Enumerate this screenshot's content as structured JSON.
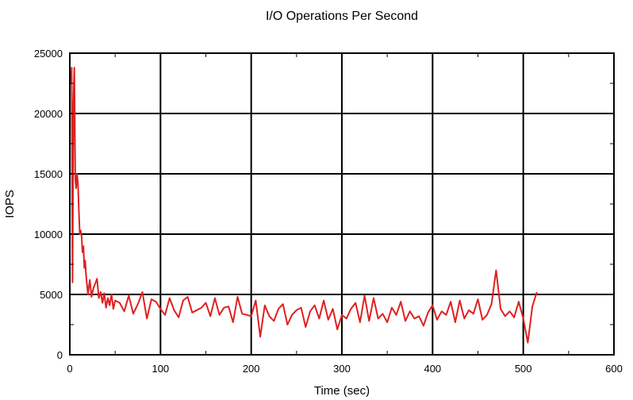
{
  "chart_data": {
    "type": "line",
    "title": "I/O Operations Per Second",
    "xlabel": "Time (sec)",
    "ylabel": "IOPS",
    "xlim": [
      0,
      600
    ],
    "ylim": [
      0,
      25000
    ],
    "xticks": [
      0,
      100,
      200,
      300,
      400,
      500,
      600
    ],
    "yticks": [
      0,
      5000,
      10000,
      15000,
      20000,
      25000
    ],
    "grid": true,
    "series": [
      {
        "name": "IOPS",
        "color": "#e02020",
        "x": [
          0,
          1,
          2,
          3,
          4,
          5,
          6,
          7,
          8,
          9,
          10,
          11,
          12,
          13,
          14,
          15,
          16,
          17,
          18,
          19,
          20,
          22,
          24,
          26,
          28,
          30,
          32,
          34,
          36,
          38,
          40,
          42,
          44,
          46,
          48,
          50,
          55,
          60,
          65,
          70,
          75,
          80,
          85,
          90,
          95,
          100,
          105,
          110,
          115,
          120,
          125,
          130,
          135,
          140,
          145,
          150,
          155,
          160,
          165,
          170,
          175,
          180,
          185,
          190,
          195,
          200,
          205,
          210,
          215,
          220,
          225,
          230,
          235,
          240,
          245,
          250,
          255,
          260,
          265,
          270,
          275,
          280,
          285,
          290,
          295,
          300,
          305,
          310,
          315,
          320,
          325,
          330,
          335,
          340,
          345,
          350,
          355,
          360,
          365,
          370,
          375,
          380,
          385,
          390,
          395,
          400,
          405,
          410,
          415,
          420,
          425,
          430,
          435,
          440,
          445,
          450,
          455,
          460,
          465,
          470,
          475,
          480,
          485,
          490,
          495,
          500,
          505,
          510,
          515
        ],
        "values": [
          23000,
          22500,
          23800,
          6000,
          21000,
          23800,
          14500,
          13800,
          15000,
          14200,
          12000,
          10000,
          10300,
          9800,
          8500,
          9000,
          7200,
          7800,
          6500,
          5800,
          5000,
          6200,
          4800,
          5500,
          5900,
          6300,
          4700,
          5200,
          4300,
          5100,
          3900,
          4700,
          4100,
          5000,
          3800,
          4500,
          4300,
          3600,
          4900,
          3400,
          4200,
          5200,
          3000,
          4600,
          4400,
          3800,
          3300,
          4700,
          3700,
          3100,
          4500,
          4800,
          3500,
          3700,
          3900,
          4300,
          3200,
          4700,
          3300,
          3900,
          4000,
          2700,
          4800,
          3400,
          3300,
          3200,
          4500,
          1500,
          4100,
          3200,
          2800,
          3800,
          4200,
          2500,
          3300,
          3700,
          3900,
          2300,
          3600,
          4100,
          3000,
          4500,
          2900,
          3800,
          2100,
          3300,
          3000,
          3800,
          4300,
          2700,
          4900,
          2800,
          4700,
          3000,
          3400,
          2700,
          3900,
          3300,
          4400,
          2800,
          3600,
          3000,
          3200,
          2400,
          3500,
          4100,
          2900,
          3600,
          3300,
          4400,
          2700,
          4500,
          3000,
          3700,
          3400,
          4600,
          2900,
          3300,
          4200,
          7000,
          3800,
          3200,
          3600,
          3100,
          4400,
          3000,
          1000,
          4000,
          5200
        ]
      }
    ]
  }
}
